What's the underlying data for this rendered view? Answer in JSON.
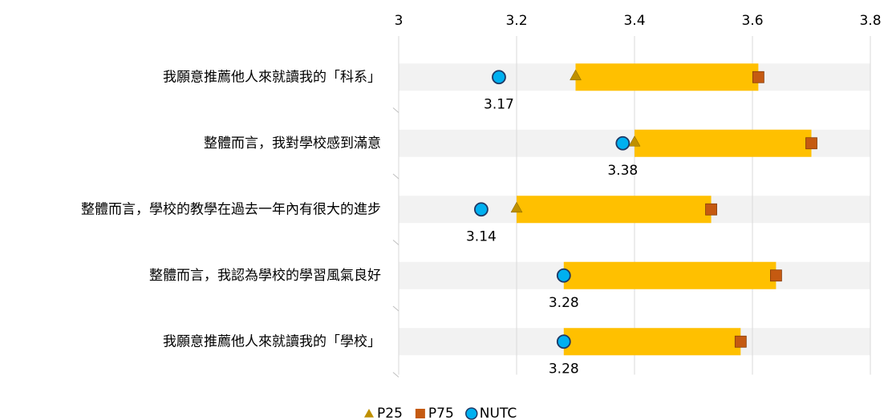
{
  "chart_data": {
    "type": "range",
    "categories": [
      "我願意推薦他人來就讀我的「科系」",
      "整體而言，我對學校感到滿意",
      "整體而言，學校的教學在過去一年內有很大的進步",
      "整體而言，我認為學校的學習風氣良好",
      "我願意推薦他人來就讀我的「學校」"
    ],
    "series": [
      {
        "name": "P25",
        "color": "#bf9000",
        "values": [
          3.3,
          3.4,
          3.2,
          3.28,
          3.28
        ]
      },
      {
        "name": "P75",
        "color": "#c55a11",
        "values": [
          3.61,
          3.7,
          3.53,
          3.64,
          3.58
        ]
      },
      {
        "name": "NUTC",
        "color": "#00b0f0",
        "values": [
          3.17,
          3.38,
          3.14,
          3.28,
          3.28
        ]
      }
    ],
    "range_color": "#ffc000",
    "xlim": [
      3,
      3.8
    ],
    "xticks": [
      3,
      3.2,
      3.4,
      3.6,
      3.8
    ],
    "grid": true,
    "legend": "bottom"
  }
}
